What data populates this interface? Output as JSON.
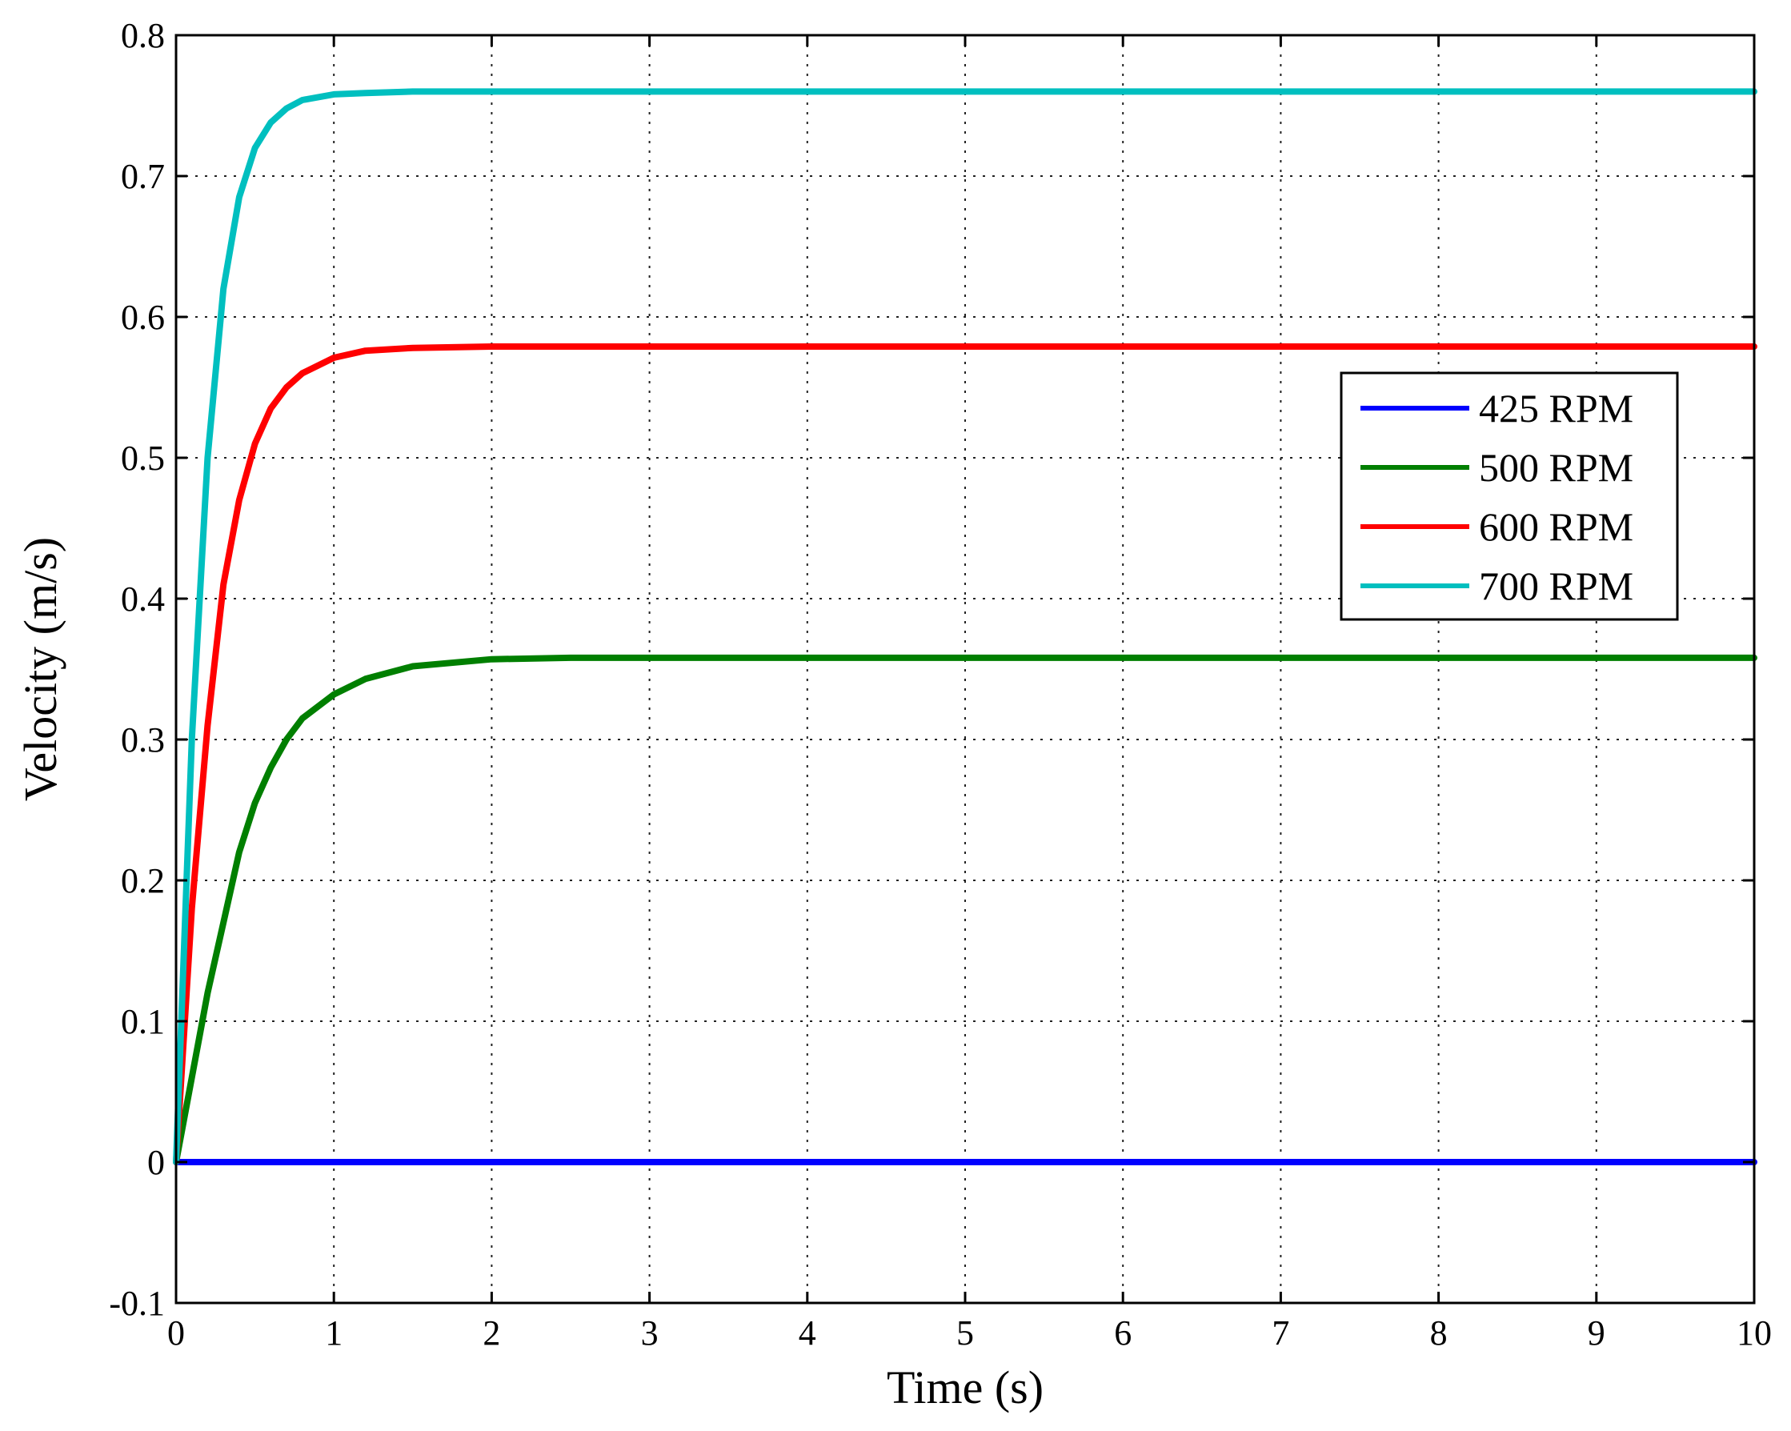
{
  "chart_data": {
    "type": "line",
    "title": "",
    "xlabel": "Time (s)",
    "ylabel": "Velocity (m/s)",
    "xlim": [
      0,
      10
    ],
    "ylim": [
      -0.1,
      0.8
    ],
    "xticks": [
      "0",
      "1",
      "2",
      "3",
      "4",
      "5",
      "6",
      "7",
      "8",
      "9",
      "10"
    ],
    "yticks": [
      "-0.1",
      "0",
      "0.1",
      "0.2",
      "0.3",
      "0.4",
      "0.5",
      "0.6",
      "0.7",
      "0.8"
    ],
    "grid": true,
    "legend_position": "upper-right",
    "x": [
      0,
      0.1,
      0.2,
      0.3,
      0.4,
      0.5,
      0.6,
      0.7,
      0.8,
      1.0,
      1.2,
      1.5,
      2.0,
      2.5,
      3,
      4,
      5,
      6,
      7,
      8,
      9,
      10
    ],
    "series": [
      {
        "name": "425 RPM",
        "color": "#0000ff",
        "values": [
          0,
          0,
          0,
          0,
          0,
          0,
          0,
          0,
          0,
          0,
          0,
          0,
          0,
          0,
          0,
          0,
          0,
          0,
          0,
          0,
          0,
          0
        ]
      },
      {
        "name": "500 RPM",
        "color": "#007f00",
        "values": [
          0,
          0.06,
          0.12,
          0.17,
          0.22,
          0.255,
          0.28,
          0.3,
          0.315,
          0.332,
          0.343,
          0.352,
          0.357,
          0.358,
          0.358,
          0.358,
          0.358,
          0.358,
          0.358,
          0.358,
          0.358,
          0.358
        ]
      },
      {
        "name": "600 RPM",
        "color": "#ff0000",
        "values": [
          0,
          0.18,
          0.31,
          0.41,
          0.47,
          0.51,
          0.535,
          0.55,
          0.56,
          0.571,
          0.576,
          0.578,
          0.579,
          0.579,
          0.579,
          0.579,
          0.579,
          0.579,
          0.579,
          0.579,
          0.579,
          0.579
        ]
      },
      {
        "name": "700 RPM",
        "color": "#00bfbf",
        "values": [
          0,
          0.3,
          0.5,
          0.62,
          0.685,
          0.72,
          0.738,
          0.748,
          0.754,
          0.758,
          0.759,
          0.76,
          0.76,
          0.76,
          0.76,
          0.76,
          0.76,
          0.76,
          0.76,
          0.76,
          0.76,
          0.76
        ]
      }
    ]
  }
}
